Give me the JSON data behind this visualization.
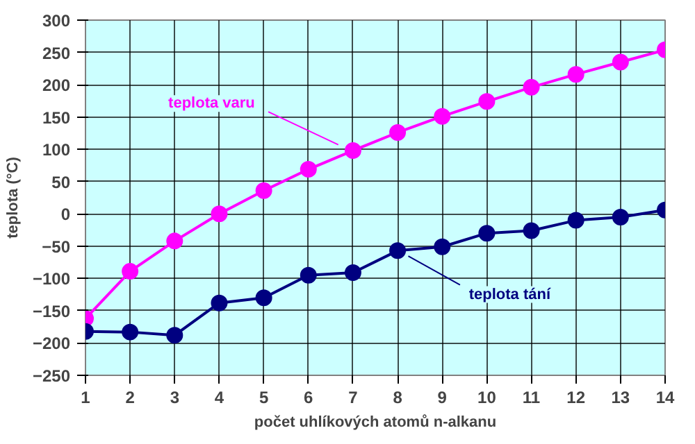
{
  "chart_data": {
    "type": "line",
    "xlabel": "počet uhlíkových atomů n-alkanu",
    "ylabel": "teplota (°C)",
    "x": [
      1,
      2,
      3,
      4,
      5,
      6,
      7,
      8,
      9,
      10,
      11,
      12,
      13,
      14
    ],
    "series": [
      {
        "name": "teplota varu",
        "color": "#ff00ff",
        "values": [
          -162,
          -89,
          -42,
          0,
          36,
          69,
          98,
          126,
          151,
          174,
          196,
          216,
          235,
          254
        ]
      },
      {
        "name": "teplota tání",
        "color": "#000080",
        "values": [
          -182,
          -183,
          -188,
          -138,
          -130,
          -95,
          -91,
          -57,
          -51,
          -30,
          -26,
          -10,
          -5,
          6
        ]
      }
    ],
    "xlim": [
      1,
      14
    ],
    "xticks": [
      1,
      2,
      3,
      4,
      5,
      6,
      7,
      8,
      9,
      10,
      11,
      12,
      13,
      14
    ],
    "ylim": [
      -250,
      300
    ],
    "yticks": [
      -250,
      -200,
      -150,
      -100,
      -50,
      0,
      50,
      100,
      150,
      200,
      250,
      300
    ],
    "grid": true,
    "marker": "circle",
    "line_style": "solid"
  }
}
